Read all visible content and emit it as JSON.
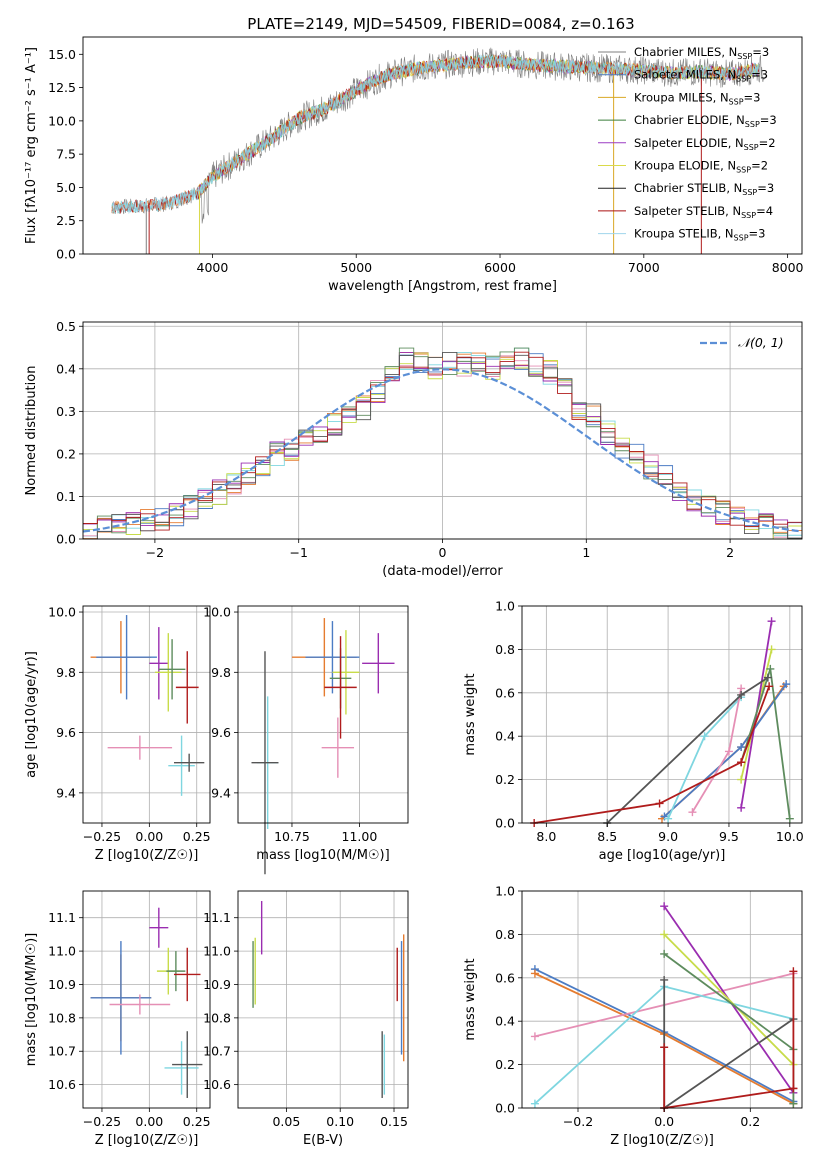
{
  "colors": {
    "chabrier_miles": "#7f7f7f",
    "salpeter_miles": "#4c7cc4",
    "kroupa_miles": "#d9a825",
    "chabrier_elodie": "#3a7d3a",
    "salpeter_elodie": "#9b3cc3",
    "kroupa_elodie": "#dada4a",
    "chabrier_stelib": "#222222",
    "salpeter_stelib": "#aa1111",
    "kroupa_stelib": "#9fd4ec",
    "extra_orange": "#e57c30",
    "extra_pink": "#e58fb5",
    "extra_cyan": "#7fd6e0",
    "extra_darkgray": "#555555",
    "extra_olive": "#5e8c5e",
    "extra_purple": "#9a2db0",
    "extra_yellowgreen": "#c8dc4a",
    "extra_red": "#b01c1c",
    "normal_curve": "#5b8fd6"
  },
  "chart_data": [
    {
      "type": "line",
      "title": "PLATE=2149, MJD=54509, FIBERID=0084, z=0.163",
      "xlabel": "wavelength [Angstrom, rest frame]",
      "ylabel": "Flux [fλ10⁻¹⁷ erg cm⁻² s⁻¹ A⁻¹]",
      "xlim": [
        3100,
        8100
      ],
      "ylim": [
        0,
        16.3
      ],
      "xticks": [
        "4000",
        "5000",
        "6000",
        "7000",
        "8000"
      ],
      "yticks": [
        "0.0",
        "2.5",
        "5.0",
        "7.5",
        "10.0",
        "12.5",
        "15.0"
      ],
      "legend": [
        "Chabrier MILES, N_SSP=3",
        "Salpeter MILES, N_SSP=3",
        "Kroupa MILES, N_SSP=3",
        "Chabrier ELODIE, N_SSP=3",
        "Salpeter ELODIE, N_SSP=2",
        "Kroupa ELODIE, N_SSP=2",
        "Chabrier STELIB, N_SSP=3",
        "Salpeter STELIB, N_SSP=4",
        "Kroupa STELIB, N_SSP=3"
      ],
      "legend_location": "right",
      "continuum": {
        "x": [
          3300,
          3500,
          3700,
          3900,
          4000,
          4200,
          4400,
          4600,
          4800,
          5000,
          5200,
          5400,
          5600,
          5800,
          6000,
          6200,
          6400,
          6600,
          6800,
          7000,
          7200,
          7400,
          7600,
          7800
        ],
        "y": [
          3.5,
          3.6,
          3.8,
          4.6,
          5.8,
          7.2,
          8.6,
          10.2,
          11.0,
          12.3,
          13.4,
          13.9,
          14.2,
          14.4,
          14.5,
          14.2,
          14.1,
          14.0,
          13.9,
          13.8,
          13.6,
          13.7,
          13.5,
          13.9
        ]
      }
    },
    {
      "type": "bar",
      "xlabel": "(data-model)/error",
      "ylabel": "Normed distribution",
      "xlim": [
        -2.5,
        2.5
      ],
      "ylim": [
        0,
        0.51
      ],
      "xticks": [
        "−2",
        "−1",
        "0",
        "1",
        "2"
      ],
      "yticks": [
        "0.0",
        "0.1",
        "0.2",
        "0.3",
        "0.4",
        "0.5"
      ],
      "legend": [
        "𝒩(0, 1)"
      ],
      "legend_location": "top-right",
      "bin_edges_start": -2.5,
      "bin_width": 0.1,
      "mean_histogram": [
        0.02,
        0.025,
        0.03,
        0.035,
        0.04,
        0.05,
        0.06,
        0.075,
        0.09,
        0.11,
        0.13,
        0.15,
        0.17,
        0.2,
        0.21,
        0.23,
        0.24,
        0.27,
        0.29,
        0.31,
        0.35,
        0.38,
        0.42,
        0.41,
        0.4,
        0.41,
        0.41,
        0.42,
        0.4,
        0.43,
        0.42,
        0.41,
        0.39,
        0.35,
        0.31,
        0.29,
        0.25,
        0.22,
        0.2,
        0.17,
        0.15,
        0.12,
        0.09,
        0.08,
        0.06,
        0.05,
        0.04,
        0.03,
        0.025,
        0.02
      ]
    },
    {
      "type": "scatter",
      "xlabel": "Z [log10(Z/Z☉)]",
      "ylabel": "age  [log10(age/yr)]",
      "xlim": [
        -0.35,
        0.32
      ],
      "ylim": [
        9.3,
        10.02
      ],
      "xticks": [
        "−0.25",
        "0.00",
        "0.25"
      ],
      "yticks": [
        "9.4",
        "9.6",
        "9.8",
        "10.0"
      ],
      "points": [
        {
          "x": -0.15,
          "y": 9.85,
          "xerr": 0.16,
          "yerr": 0.12,
          "color": "extra_orange"
        },
        {
          "x": -0.12,
          "y": 9.85,
          "xerr": 0.16,
          "yerr": 0.14,
          "color": "salpeter_miles"
        },
        {
          "x": 0.05,
          "y": 9.83,
          "xerr": 0.05,
          "yerr": 0.12,
          "color": "extra_purple"
        },
        {
          "x": 0.1,
          "y": 9.8,
          "xerr": 0.07,
          "yerr": 0.13,
          "color": "extra_yellowgreen"
        },
        {
          "x": 0.12,
          "y": 9.81,
          "xerr": 0.07,
          "yerr": 0.1,
          "color": "extra_olive"
        },
        {
          "x": 0.2,
          "y": 9.75,
          "xerr": 0.06,
          "yerr": 0.12,
          "color": "extra_red"
        },
        {
          "x": -0.05,
          "y": 9.55,
          "xerr": 0.17,
          "yerr": 0.04,
          "color": "extra_pink"
        },
        {
          "x": 0.17,
          "y": 9.49,
          "xerr": 0.07,
          "yerr": 0.1,
          "color": "extra_cyan"
        },
        {
          "x": 0.21,
          "y": 9.5,
          "xerr": 0.08,
          "yerr": 0.03,
          "color": "extra_darkgray"
        }
      ]
    },
    {
      "type": "scatter",
      "xlabel": "mass [log10(M/M☉)]",
      "ylabel": "",
      "xlim": [
        10.55,
        11.18
      ],
      "ylim": [
        9.3,
        10.02
      ],
      "xticks": [
        "10.75",
        "11.00"
      ],
      "yticks": [
        "9.4",
        "9.6",
        "9.8",
        "10.0"
      ],
      "points": [
        {
          "x": 10.87,
          "y": 9.85,
          "xerr": 0.12,
          "yerr": 0.13,
          "color": "extra_orange"
        },
        {
          "x": 10.9,
          "y": 9.85,
          "xerr": 0.1,
          "yerr": 0.12,
          "color": "salpeter_miles"
        },
        {
          "x": 11.07,
          "y": 9.83,
          "xerr": 0.06,
          "yerr": 0.1,
          "color": "extra_purple"
        },
        {
          "x": 10.95,
          "y": 9.8,
          "xerr": 0.05,
          "yerr": 0.14,
          "color": "extra_yellowgreen"
        },
        {
          "x": 10.93,
          "y": 9.78,
          "xerr": 0.04,
          "yerr": 0.1,
          "color": "extra_olive"
        },
        {
          "x": 10.93,
          "y": 9.75,
          "xerr": 0.06,
          "yerr": 0.17,
          "color": "extra_red"
        },
        {
          "x": 10.92,
          "y": 9.55,
          "xerr": 0.06,
          "yerr": 0.1,
          "color": "extra_pink"
        },
        {
          "x": 10.66,
          "y": 9.5,
          "xerr": 0.04,
          "yerr": 0.22,
          "color": "extra_cyan"
        },
        {
          "x": 10.65,
          "y": 9.5,
          "xerr": 0.05,
          "yerr": 0.37,
          "color": "extra_darkgray"
        }
      ]
    },
    {
      "type": "line",
      "xlabel": "age  [log10(age/yr)]",
      "ylabel": "mass weight",
      "xlim": [
        7.8,
        10.1
      ],
      "ylim": [
        0,
        1.0
      ],
      "xticks": [
        "8.0",
        "8.5",
        "9.0",
        "9.5",
        "10.0"
      ],
      "yticks": [
        "0.0",
        "0.2",
        "0.4",
        "0.6",
        "0.8",
        "1.0"
      ],
      "series": [
        {
          "color": "extra_orange",
          "x": [
            8.95,
            9.6,
            9.95
          ],
          "y": [
            0.02,
            0.35,
            0.63
          ]
        },
        {
          "color": "salpeter_miles",
          "x": [
            8.97,
            9.6,
            9.97
          ],
          "y": [
            0.03,
            0.35,
            0.64
          ]
        },
        {
          "color": "extra_cyan",
          "x": [
            9.0,
            9.3,
            9.6
          ],
          "y": [
            0.02,
            0.4,
            0.58
          ]
        },
        {
          "color": "extra_pink",
          "x": [
            9.2,
            9.5,
            9.6
          ],
          "y": [
            0.05,
            0.33,
            0.62
          ]
        },
        {
          "color": "extra_yellowgreen",
          "x": [
            9.6,
            9.85
          ],
          "y": [
            0.2,
            0.8
          ]
        },
        {
          "color": "extra_purple",
          "x": [
            9.6,
            9.85
          ],
          "y": [
            0.07,
            0.93
          ]
        },
        {
          "color": "extra_olive",
          "x": [
            9.6,
            9.84,
            10.0
          ],
          "y": [
            0.28,
            0.71,
            0.02
          ]
        },
        {
          "color": "extra_darkgray",
          "x": [
            8.5,
            9.6,
            9.82
          ],
          "y": [
            0.0,
            0.59,
            0.67
          ]
        },
        {
          "color": "extra_red",
          "x": [
            7.9,
            8.93,
            9.6,
            9.83
          ],
          "y": [
            0.0,
            0.09,
            0.28,
            0.63
          ]
        }
      ]
    },
    {
      "type": "scatter",
      "xlabel": "Z [log10(Z/Z☉)]",
      "ylabel": "mass [log10(M/M☉)]",
      "xlim": [
        -0.35,
        0.32
      ],
      "ylim": [
        10.53,
        11.18
      ],
      "xticks": [
        "−0.25",
        "0.00",
        "0.25"
      ],
      "yticks": [
        "10.6",
        "10.7",
        "10.8",
        "10.9",
        "11.0",
        "11.1"
      ],
      "points": [
        {
          "x": -0.15,
          "y": 10.86,
          "xerr": 0.16,
          "yerr": 0.13,
          "color": "extra_orange"
        },
        {
          "x": -0.15,
          "y": 10.86,
          "xerr": 0.16,
          "yerr": 0.17,
          "color": "salpeter_miles"
        },
        {
          "x": 0.05,
          "y": 11.07,
          "xerr": 0.05,
          "yerr": 0.06,
          "color": "extra_purple"
        },
        {
          "x": 0.1,
          "y": 10.94,
          "xerr": 0.06,
          "yerr": 0.07,
          "color": "extra_yellowgreen"
        },
        {
          "x": 0.14,
          "y": 10.94,
          "xerr": 0.05,
          "yerr": 0.06,
          "color": "extra_olive"
        },
        {
          "x": 0.2,
          "y": 10.93,
          "xerr": 0.07,
          "yerr": 0.08,
          "color": "extra_red"
        },
        {
          "x": -0.05,
          "y": 10.84,
          "xerr": 0.16,
          "yerr": 0.03,
          "color": "extra_pink"
        },
        {
          "x": 0.17,
          "y": 10.65,
          "xerr": 0.09,
          "yerr": 0.08,
          "color": "extra_cyan"
        },
        {
          "x": 0.2,
          "y": 10.66,
          "xerr": 0.08,
          "yerr": 0.1,
          "color": "extra_darkgray"
        }
      ]
    },
    {
      "type": "scatter",
      "xlabel": "E(B-V)",
      "ylabel": "",
      "xlim": [
        0.005,
        0.163
      ],
      "ylim": [
        10.53,
        11.18
      ],
      "xticks": [
        "0.05",
        "0.10",
        "0.15"
      ],
      "yticks": [
        "10.6",
        "10.7",
        "10.8",
        "10.9",
        "11.0",
        "11.1"
      ],
      "points": [
        {
          "x": 0.027,
          "y": 11.07,
          "xerr": 0.0,
          "yerr": 0.08,
          "color": "extra_purple"
        },
        {
          "x": 0.021,
          "y": 10.94,
          "xerr": 0.0,
          "yerr": 0.1,
          "color": "extra_yellowgreen"
        },
        {
          "x": 0.019,
          "y": 10.93,
          "xerr": 0.0,
          "yerr": 0.1,
          "color": "extra_olive"
        },
        {
          "x": 0.153,
          "y": 10.93,
          "xerr": 0.0,
          "yerr": 0.08,
          "color": "extra_red"
        },
        {
          "x": 0.157,
          "y": 10.86,
          "xerr": 0.0,
          "yerr": 0.17,
          "color": "salpeter_miles"
        },
        {
          "x": 0.159,
          "y": 10.86,
          "xerr": 0.0,
          "yerr": 0.19,
          "color": "extra_orange"
        },
        {
          "x": 0.141,
          "y": 10.66,
          "xerr": 0.0,
          "yerr": 0.09,
          "color": "extra_cyan"
        },
        {
          "x": 0.139,
          "y": 10.66,
          "xerr": 0.0,
          "yerr": 0.1,
          "color": "extra_darkgray"
        }
      ]
    },
    {
      "type": "line",
      "xlabel": "Z [log10(Z/Z☉)]",
      "ylabel": "mass weight",
      "xlim": [
        -0.33,
        0.32
      ],
      "ylim": [
        0,
        1.0
      ],
      "xticks": [
        "−0.2",
        "0.0",
        "0.2"
      ],
      "yticks": [
        "0.0",
        "0.2",
        "0.4",
        "0.6",
        "0.8",
        "1.0"
      ],
      "series": [
        {
          "color": "salpeter_miles",
          "x": [
            -0.3,
            0.0,
            0.3
          ],
          "y": [
            0.64,
            0.35,
            0.03
          ]
        },
        {
          "color": "extra_orange",
          "x": [
            -0.3,
            0.0,
            0.3
          ],
          "y": [
            0.62,
            0.34,
            0.02
          ]
        },
        {
          "color": "extra_pink",
          "x": [
            -0.3,
            0.3
          ],
          "y": [
            0.33,
            0.62
          ]
        },
        {
          "color": "extra_cyan",
          "x": [
            -0.3,
            0.0,
            0.3
          ],
          "y": [
            0.02,
            0.56,
            0.41
          ]
        },
        {
          "color": "extra_purple",
          "x": [
            0.0,
            0.3
          ],
          "y": [
            0.93,
            0.07
          ]
        },
        {
          "color": "extra_yellowgreen",
          "x": [
            0.0,
            0.3
          ],
          "y": [
            0.8,
            0.2
          ]
        },
        {
          "color": "extra_olive",
          "x": [
            0.0,
            0.3,
            0.3
          ],
          "y": [
            0.71,
            0.27,
            0.02
          ]
        },
        {
          "color": "extra_darkgray",
          "x": [
            0.0,
            0.0,
            0.3
          ],
          "y": [
            0.59,
            0.0,
            0.41
          ]
        },
        {
          "color": "extra_red",
          "x": [
            0.0,
            0.0,
            0.3,
            0.3,
            0.3
          ],
          "y": [
            0.28,
            0.0,
            0.09,
            0.09,
            0.63
          ]
        }
      ]
    }
  ]
}
